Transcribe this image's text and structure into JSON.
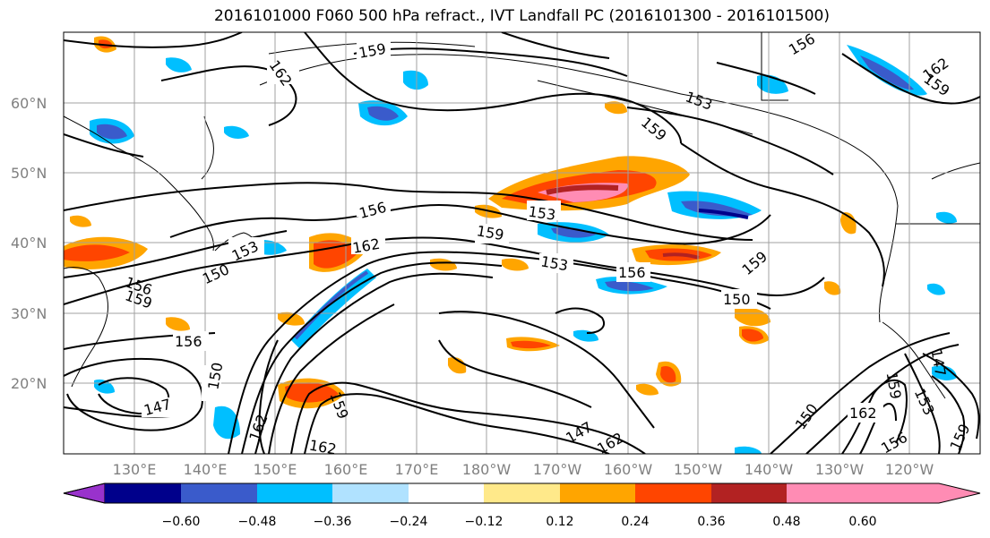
{
  "title": "2016101000 F060 500 hPa refract., IVT Landfall PC (2016101300 - 2016101500)",
  "lat_labels": [
    "60°N",
    "50°N",
    "40°N",
    "30°N",
    "20°N"
  ],
  "lon_labels": [
    "130°E",
    "140°E",
    "150°E",
    "160°E",
    "170°E",
    "180°W",
    "170°W",
    "160°W",
    "150°W",
    "140°W",
    "130°W",
    "120°W"
  ],
  "contour_labels": [
    "159",
    "162",
    "162",
    "156",
    "153",
    "159",
    "156",
    "153",
    "162",
    "159",
    "150",
    "159",
    "156",
    "153",
    "159",
    "150",
    "156",
    "147",
    "150",
    "162",
    "159",
    "147",
    "162",
    "150",
    "162",
    "159",
    "153",
    "156",
    "147",
    "159",
    "162",
    "159",
    "156",
    "153"
  ],
  "colorbar": {
    "ticks": [
      "−0.60",
      "−0.48",
      "−0.36",
      "−0.24",
      "−0.12",
      "0.12",
      "0.24",
      "0.36",
      "0.48",
      "0.60"
    ],
    "colors": [
      "#9932cc",
      "#00008b",
      "#3a5bcb",
      "#00bfff",
      "#b0e2ff",
      "#ffffff",
      "#ffe98a",
      "#ffa500",
      "#ff4500",
      "#b22222",
      "#ff8cb4"
    ]
  }
}
